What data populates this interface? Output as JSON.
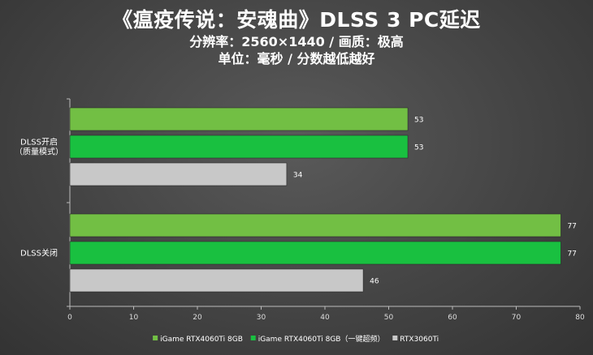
{
  "header": {
    "title": "《瘟疫传说：安魂曲》DLSS 3 PC延迟",
    "subtitle1": "分辨率：2560×1440 / 画质：极高",
    "subtitle2": "单位：毫秒 / 分数越低越好"
  },
  "chart_data": {
    "type": "bar",
    "orientation": "horizontal",
    "title": "《瘟疫传说：安魂曲》DLSS 3 PC延迟",
    "categories": [
      "DLSS开启\n（质量模式）",
      "DLSS关闭"
    ],
    "series": [
      {
        "name": "iGame RTX4060Ti 8GB",
        "color": "#72bf44",
        "values": [
          53,
          77
        ]
      },
      {
        "name": "iGame RTX4060Ti 8GB（一键超频）",
        "color": "#19c040",
        "values": [
          53,
          77
        ]
      },
      {
        "name": "RTX3060Ti",
        "color": "#c8c8c8",
        "values": [
          34,
          46
        ]
      }
    ],
    "xlim": [
      0,
      80
    ],
    "xticks": [
      0,
      10,
      20,
      30,
      40,
      50,
      60,
      70,
      80
    ],
    "grid": false,
    "legend": "bottom"
  }
}
